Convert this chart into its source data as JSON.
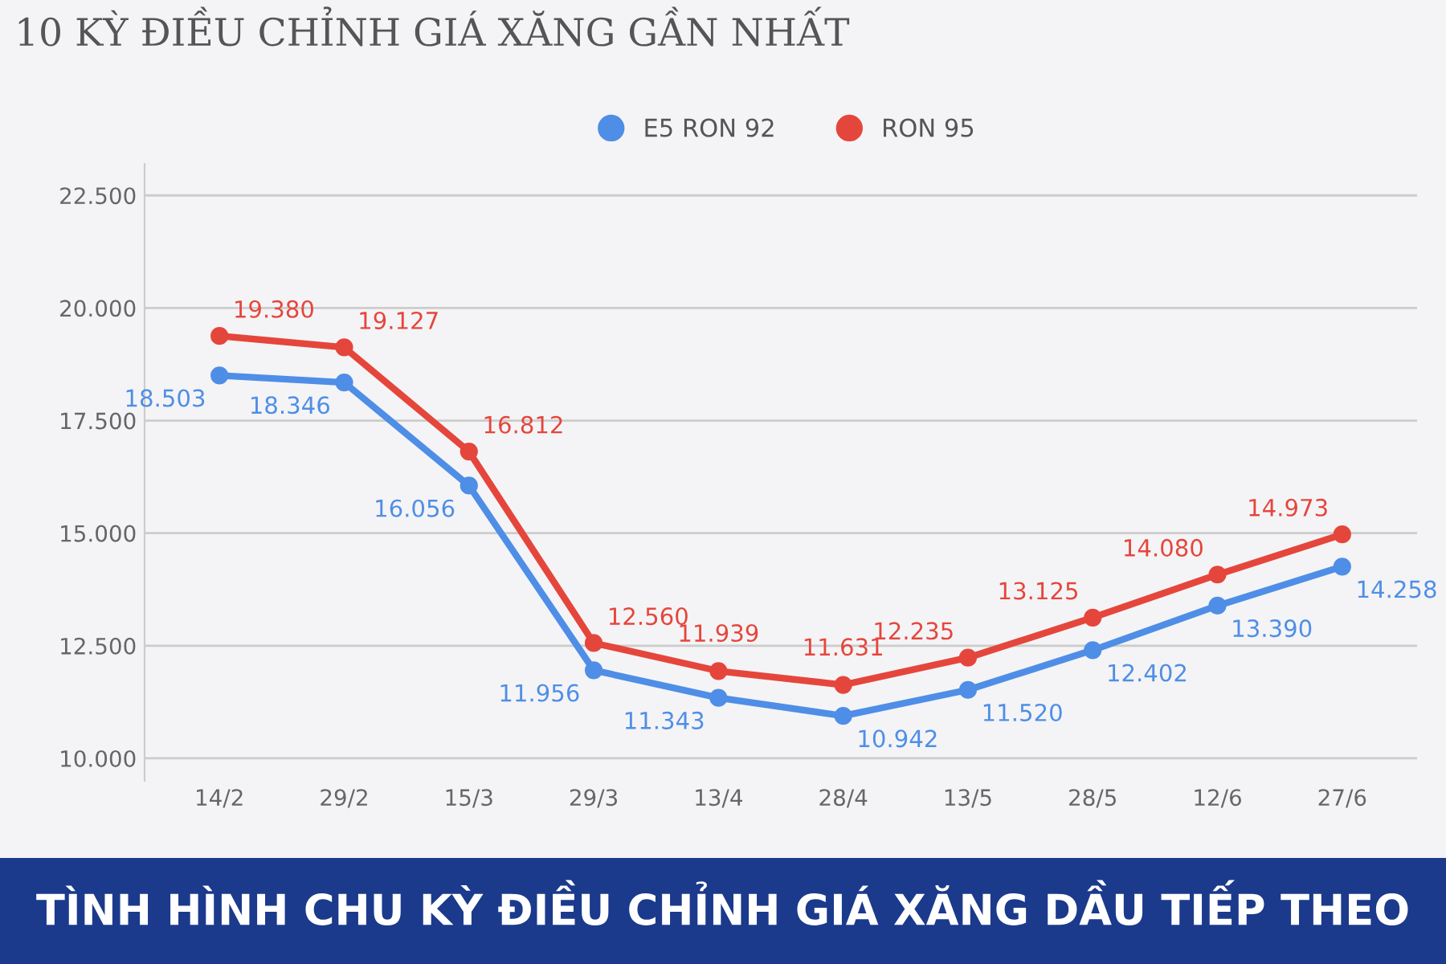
{
  "chart_data": {
    "type": "line",
    "title": "10 KỲ ĐIỀU CHỈNH GIÁ XĂNG GẦN NHẤT",
    "categories": [
      "14/2",
      "29/2",
      "15/3",
      "29/3",
      "13/4",
      "28/4",
      "13/5",
      "28/5",
      "12/6",
      "27/6"
    ],
    "series": [
      {
        "name": "E5 RON 92",
        "color": "#4f8ee6",
        "values": [
          18503,
          18346,
          16056,
          11956,
          11343,
          10942,
          11520,
          12402,
          13390,
          14258
        ],
        "value_labels": [
          "18.503",
          "18.346",
          "16.056",
          "11.956",
          "11.343",
          "10.942",
          "11.520",
          "12.402",
          "13.390",
          "14.258"
        ]
      },
      {
        "name": "RON 95",
        "color": "#e5463c",
        "values": [
          19380,
          19127,
          16812,
          12560,
          11939,
          11631,
          12235,
          13125,
          14080,
          14973
        ],
        "value_labels": [
          "19.380",
          "19.127",
          "16.812",
          "12.560",
          "11.939",
          "11.631",
          "12.235",
          "13.125",
          "14.080",
          "14.973"
        ]
      }
    ],
    "ylim": [
      9500,
      23200
    ],
    "yticks": [
      {
        "value": 10000,
        "label": "10.000"
      },
      {
        "value": 12500,
        "label": "12.500"
      },
      {
        "value": 15000,
        "label": "15.000"
      },
      {
        "value": 17500,
        "label": "17.500"
      },
      {
        "value": 20000,
        "label": "20.000"
      },
      {
        "value": 22500,
        "label": "22.500"
      }
    ],
    "grid": "y",
    "legend": "top",
    "marker": "circle",
    "line_style": "solid",
    "annotations": [
      "TÌNH HÌNH CHU KỲ ĐIỀU CHỈNH GIÁ XĂNG DẦU TIẾP THEO"
    ]
  }
}
